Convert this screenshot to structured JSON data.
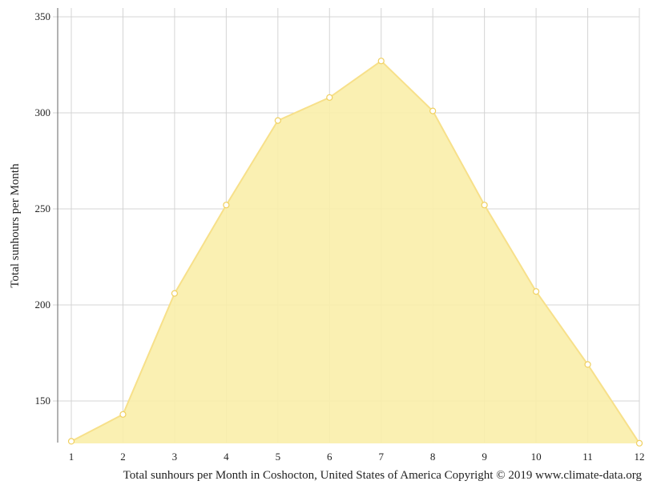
{
  "chart_data": {
    "type": "area",
    "x": [
      1,
      2,
      3,
      4,
      5,
      6,
      7,
      8,
      9,
      10,
      11,
      12
    ],
    "series": [
      {
        "values": [
          129,
          143,
          206,
          252,
          296,
          308,
          327,
          301,
          252,
          207,
          169,
          128
        ]
      }
    ],
    "xticks": [
      "1",
      "2",
      "3",
      "4",
      "5",
      "6",
      "7",
      "8",
      "9",
      "10",
      "11",
      "12"
    ],
    "yticks": [
      150,
      200,
      250,
      300,
      350
    ],
    "ylabel": "Total sunhours per Month",
    "caption": "Total sunhours per Month in Coshocton, United States of America Copyright © 2019 www.climate-data.org",
    "ylim": [
      128,
      355
    ],
    "grid": true,
    "colors": {
      "fill": "#f9eeaa",
      "line": "#f7e08a",
      "marker_stroke": "#f0d060",
      "grid": "#d4d4d4"
    }
  }
}
